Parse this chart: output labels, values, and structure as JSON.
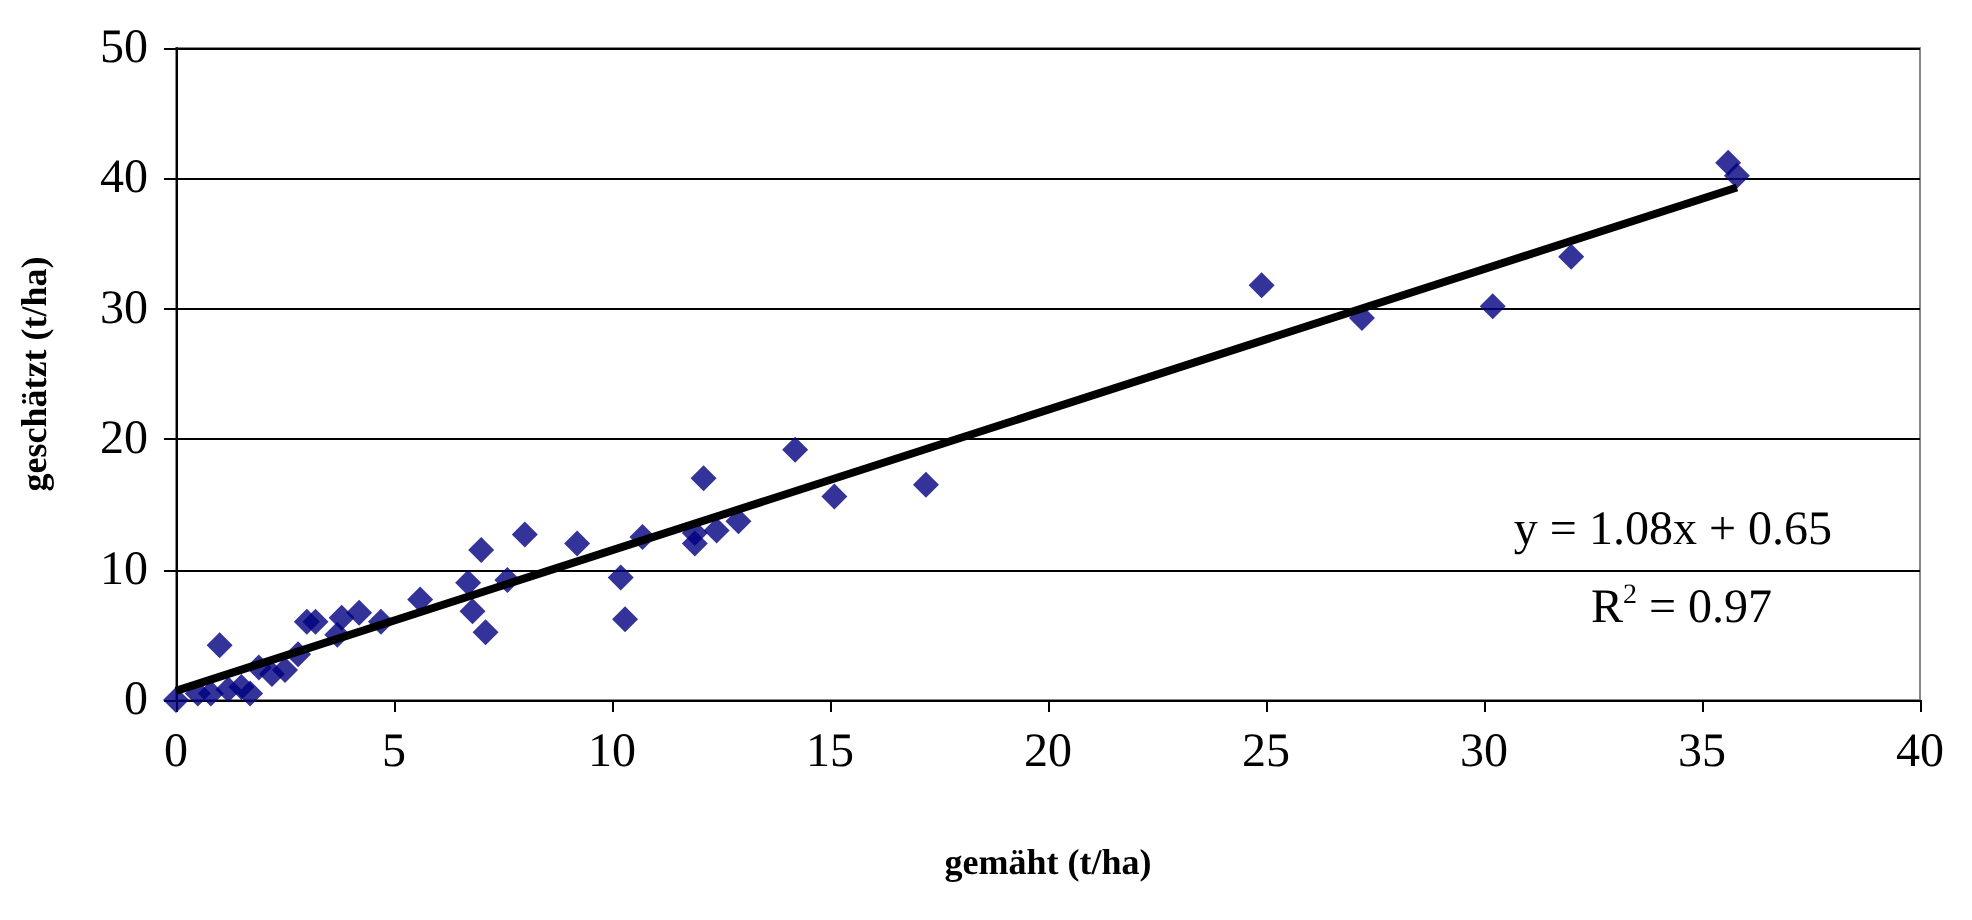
{
  "chart_data": {
    "type": "scatter",
    "xlabel": "gemäht (t/ha)",
    "ylabel": "geschätzt (t/ha)",
    "xlim": [
      0,
      40
    ],
    "xticks": [
      0,
      5,
      10,
      15,
      20,
      25,
      30,
      35,
      40
    ],
    "ylim": [
      0,
      50
    ],
    "yticks": [
      0,
      10,
      20,
      30,
      40,
      50
    ],
    "grid": "y",
    "marker": "diamond",
    "annotations": [
      "y = 1.08x + 0.65",
      "R$^{2}$ = 0.97"
    ],
    "series": [
      {
        "color": "#000080",
        "x": [
          0,
          0.5,
          0.8,
          1,
          1.2,
          1.5,
          1.7,
          1.9,
          2.2,
          2.5,
          2.8,
          3,
          3.2,
          3.7,
          3.8,
          4.2,
          4.7,
          5.6,
          6.7,
          6.8,
          7,
          7.1,
          7.6,
          8,
          9.2,
          10.2,
          10.3,
          10.7,
          11.9,
          11.9,
          12.1,
          12.4,
          12.9,
          14.2,
          15.1,
          17.2,
          24.9,
          27.2,
          30.2,
          32,
          35.6,
          35.8
        ],
        "values": [
          0,
          0.5,
          0.5,
          4.2,
          0.8,
          1,
          0.5,
          2.5,
          2,
          2.3,
          3.5,
          6,
          6,
          5,
          6.3,
          6.7,
          6,
          7.7,
          9,
          6.8,
          11.5,
          5.2,
          9.2,
          12.7,
          12,
          9.4,
          6.2,
          12.5,
          12.8,
          12,
          17,
          13,
          13.7,
          19.2,
          15.6,
          16.5,
          31.8,
          29.3,
          30.2,
          34,
          41.2,
          40.2
        ]
      },
      {
        "type": "line",
        "color": "#000000",
        "x": [
          0,
          35.8
        ],
        "values": [
          0.7,
          39.3
        ],
        "marker": "none"
      }
    ]
  }
}
